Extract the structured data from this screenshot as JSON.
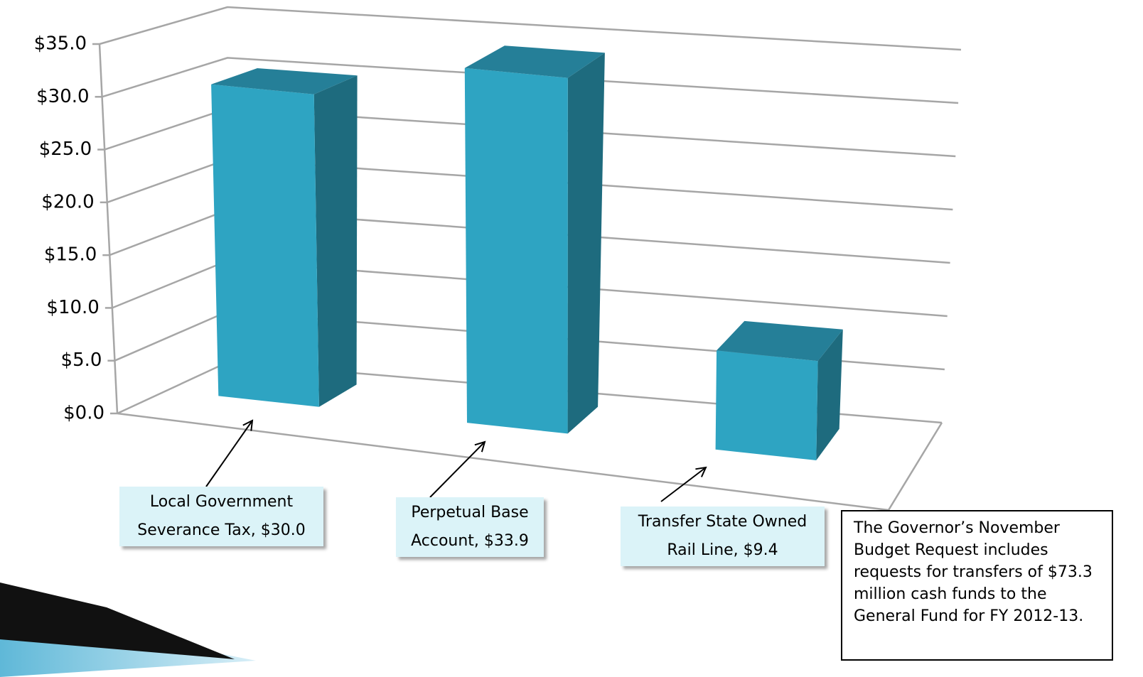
{
  "chart_data": {
    "type": "bar",
    "values": [
      30.0,
      33.9,
      9.4
    ],
    "value_labels": [
      "Local Government Severance Tax, $30.0",
      "Perpetual Base Account, $33.9",
      "Transfer State Owned Rail Line, $9.4"
    ],
    "colors": {
      "front": "#2ea4c2",
      "side": "#1e6b7e",
      "top": "#257f98"
    },
    "ylim": [
      0,
      35
    ],
    "yticks": [
      {
        "value": 0,
        "label": "$0.0"
      },
      {
        "value": 5,
        "label": "$5.0"
      },
      {
        "value": 10,
        "label": "$10.0"
      },
      {
        "value": 15,
        "label": "$15.0"
      },
      {
        "value": 20,
        "label": "$20.0"
      },
      {
        "value": 25,
        "label": "$25.0"
      },
      {
        "value": 30,
        "label": "$30.0"
      },
      {
        "value": 35,
        "label": "$35.0"
      }
    ],
    "grid": true,
    "annotation": "The Governor’s November Budget Request includes requests for transfers of $73.3 million cash funds to the General Fund for FY 2012-13."
  }
}
